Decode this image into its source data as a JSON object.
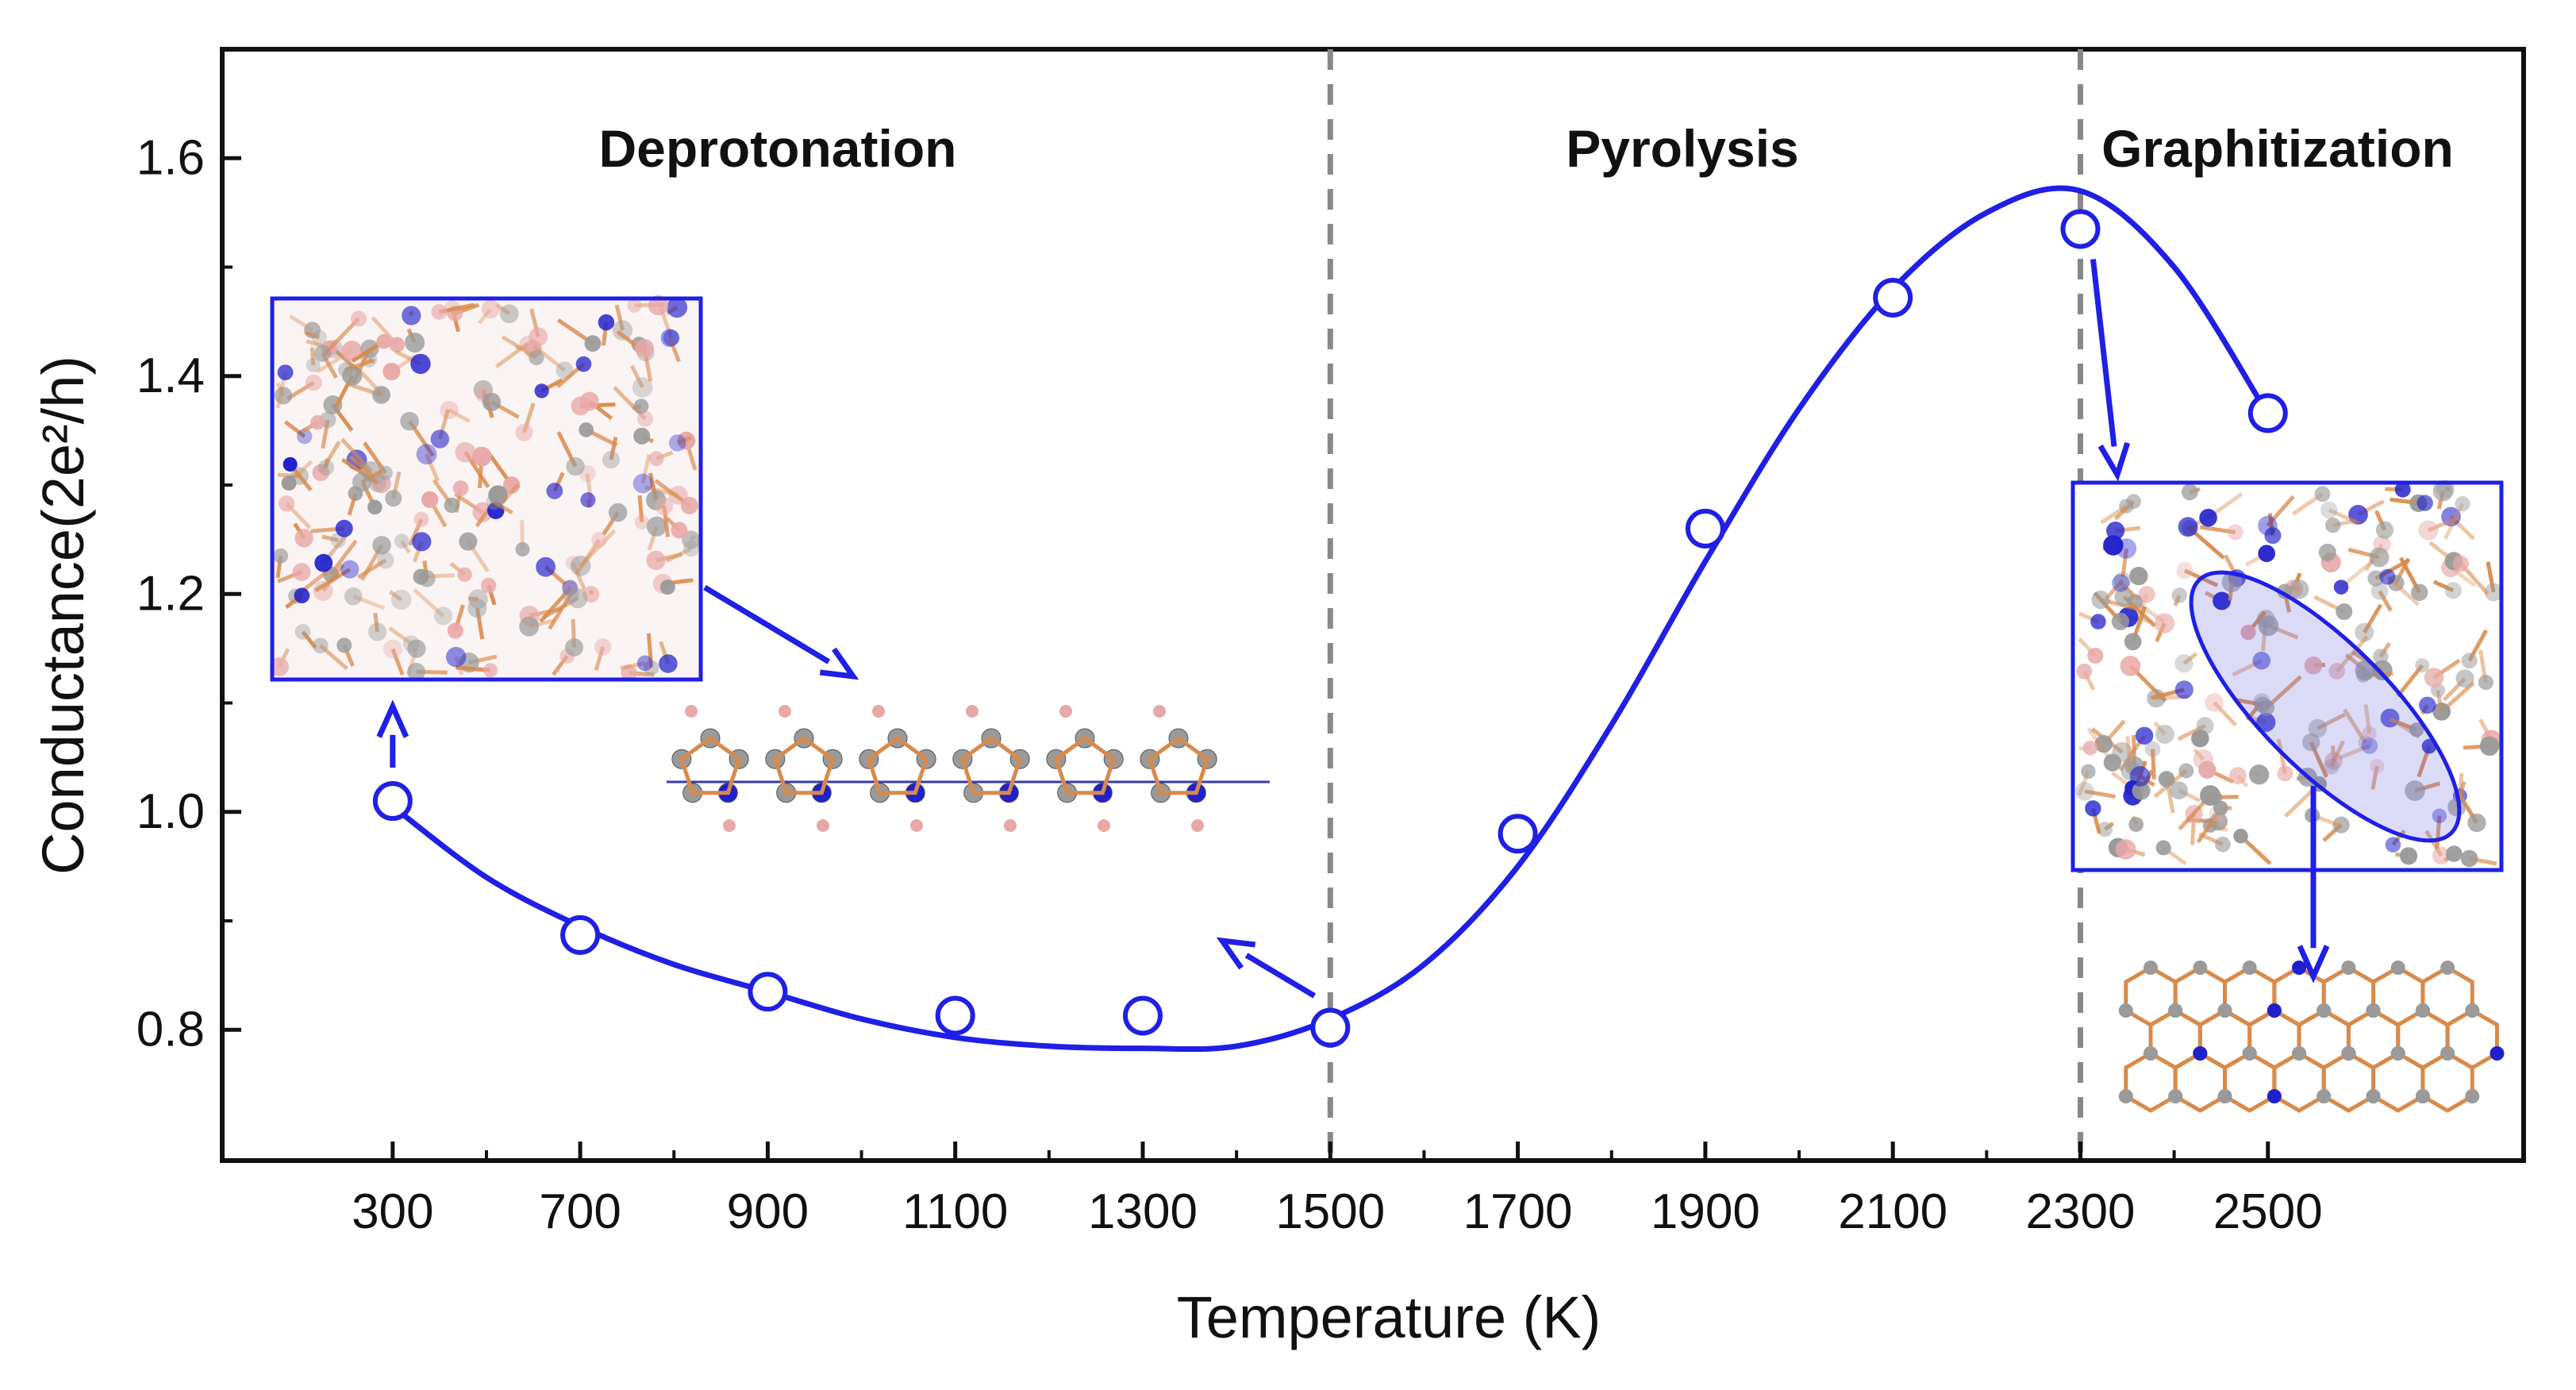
{
  "chart_data": {
    "type": "scatter",
    "xlabel": "Temperature (K)",
    "ylabel": "Conductance(2e²/h)",
    "xlim": [
      100,
      2800
    ],
    "ylim": [
      0.68,
      1.7
    ],
    "x_ticks": [
      300,
      700,
      900,
      1100,
      1300,
      1500,
      1700,
      1900,
      2100,
      2300,
      2500
    ],
    "y_ticks": [
      0.8,
      1.0,
      1.2,
      1.4,
      1.6
    ],
    "y_tick_labels": [
      "0.8",
      "1.0",
      "1.2",
      "1.4",
      "1.6"
    ],
    "grid": false,
    "color": "#1f1fe6",
    "point_index": [
      0,
      1,
      2,
      3,
      4,
      5,
      6,
      7,
      8,
      9,
      10
    ],
    "series": [
      {
        "marker": "open-circle",
        "y": [
          1.01,
          0.887,
          0.835,
          0.813,
          0.813,
          0.802,
          0.98,
          1.26,
          1.472,
          1.535,
          1.366
        ]
      }
    ],
    "fit_curve_index": [
      0,
      0.5,
      1,
      1.5,
      2,
      2.5,
      3,
      3.5,
      4,
      4.5,
      5,
      5.5,
      6,
      6.5,
      7,
      7.5,
      8,
      8.5,
      9,
      9.5,
      10
    ],
    "fit_curve_y": [
      1.005,
      0.94,
      0.895,
      0.86,
      0.835,
      0.81,
      0.793,
      0.785,
      0.783,
      0.785,
      0.81,
      0.86,
      0.95,
      1.08,
      1.23,
      1.37,
      1.48,
      1.55,
      1.57,
      1.5,
      1.365
    ],
    "boundaries": [
      1500,
      2300
    ],
    "regions": [
      {
        "label": "Deprotonation",
        "x": 1000
      },
      {
        "label": "Pyrolysis",
        "x": 1900
      },
      {
        "label": "Graphitization",
        "x": 2580
      }
    ],
    "annotations": [
      {
        "type": "inset",
        "subject": "amorphous polymer network (deprotonation stage)",
        "near_x": 300
      },
      {
        "type": "inset",
        "subject": "linear chain of pyrrole-like rings",
        "near_x": 1000
      },
      {
        "type": "inset",
        "subject": "partially graphitized network with ellipse highlight",
        "near_x": 2600
      },
      {
        "type": "inset",
        "subject": "N-doped graphene fragment",
        "near_x": 2600
      }
    ]
  }
}
